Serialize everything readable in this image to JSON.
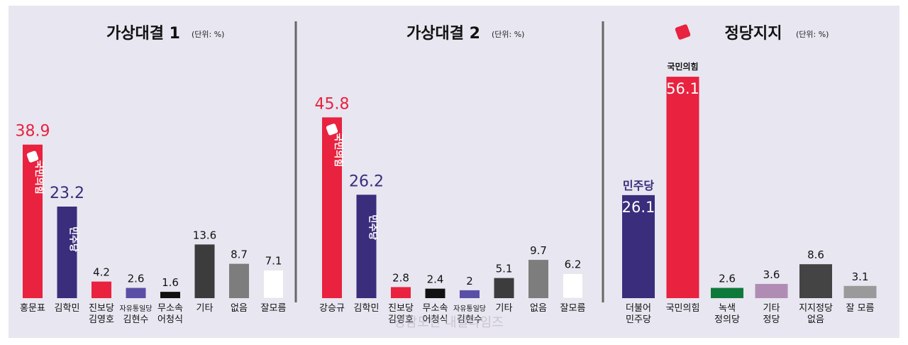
{
  "colors": {
    "panel_bg": "#e8e6f0",
    "red": "#e8223f",
    "navy": "#3a2d7c",
    "purple": "#5a4fa6",
    "black": "#111111",
    "dark": "#3c3c3c",
    "gray": "#7d7d7d",
    "white": "#ffffff",
    "green": "#0e7a3a",
    "mauve": "#b08cb4",
    "dark2": "#444444",
    "light": "#9a9a9a"
  },
  "watermark": "경남도민 내일타임즈",
  "chart_data": [
    {
      "type": "bar",
      "title": "가상대결 1",
      "unit": "(단위: %)",
      "categories": [
        [
          "홍문표"
        ],
        [
          "김학민"
        ],
        [
          "진보당",
          "김영호"
        ],
        [
          "자유통일당",
          "김현수"
        ],
        [
          "무소속",
          "어청식"
        ],
        [
          "기타"
        ],
        [
          "없음"
        ],
        [
          "잘모름"
        ]
      ],
      "values": [
        38.9,
        23.2,
        4.2,
        2.6,
        1.6,
        13.6,
        8.7,
        7.1
      ],
      "value_colors": [
        "red",
        "navy",
        "black",
        "black",
        "black",
        "black",
        "black",
        "black"
      ],
      "bar_colors": [
        "red",
        "navy",
        "red",
        "purple",
        "black",
        "dark",
        "gray",
        "white"
      ],
      "party_labels": [
        {
          "index": 0,
          "text": "국민의힘"
        },
        {
          "index": 1,
          "text": "민주당"
        }
      ]
    },
    {
      "type": "bar",
      "title": "가상대결 2",
      "unit": "(단위: %)",
      "categories": [
        [
          "강승규"
        ],
        [
          "김학민"
        ],
        [
          "진보당",
          "김영호"
        ],
        [
          "무소속",
          "어청식"
        ],
        [
          "자유통일당",
          "김현수"
        ],
        [
          "기타"
        ],
        [
          "없음"
        ],
        [
          "잘모름"
        ]
      ],
      "values": [
        45.8,
        26.2,
        2.8,
        2.4,
        2.0,
        5.1,
        9.7,
        6.2
      ],
      "value_colors": [
        "red",
        "navy",
        "black",
        "black",
        "black",
        "black",
        "black",
        "black"
      ],
      "bar_colors": [
        "red",
        "navy",
        "red",
        "black",
        "purple",
        "dark",
        "gray",
        "white"
      ],
      "party_labels": [
        {
          "index": 0,
          "text": "국민의힘"
        },
        {
          "index": 1,
          "text": "민주당"
        }
      ]
    },
    {
      "type": "bar",
      "title": "정당지지",
      "unit": "(단위: %)",
      "categories": [
        [
          "더불어",
          "민주당"
        ],
        [
          "국민의힘"
        ],
        [
          "녹색",
          "정의당"
        ],
        [
          "기타",
          "정당"
        ],
        [
          "지지정당",
          "없음"
        ],
        [
          "잘 모름"
        ]
      ],
      "values": [
        26.1,
        56.1,
        2.6,
        3.6,
        8.6,
        3.1
      ],
      "bar_colors": [
        "navy",
        "red",
        "green",
        "mauve",
        "dark2",
        "light"
      ],
      "inside_value": [
        true,
        true,
        false,
        false,
        false,
        false
      ],
      "party_labels": [
        {
          "index": 0,
          "text": "민주당"
        },
        {
          "index": 1,
          "text": "국민의힘"
        }
      ]
    }
  ]
}
